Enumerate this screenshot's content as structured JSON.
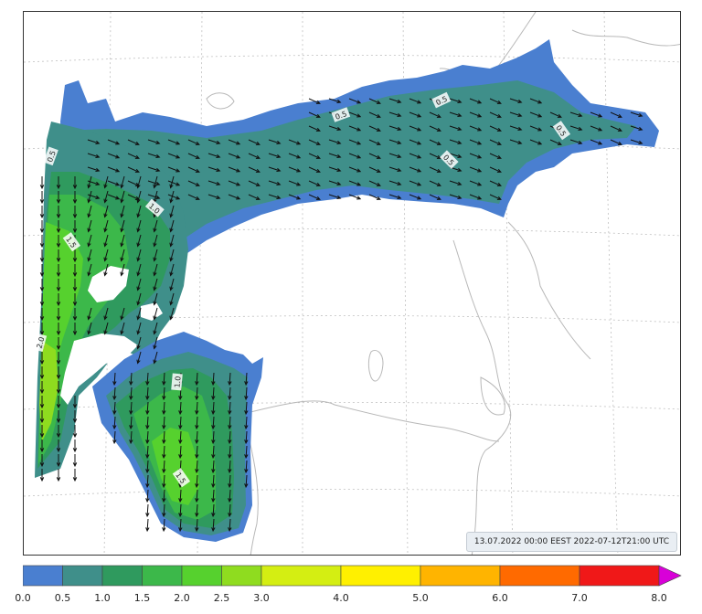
{
  "map": {
    "timestamp": "13.07.2022 00:00 EEST 2022-07-12T21:00 UTC",
    "contour_labels": [
      "0.5",
      "0.5",
      "0.5",
      "0.5",
      "0.5",
      "1.0",
      "1.5",
      "2.0",
      "1.0",
      "1.5"
    ],
    "colors": {
      "land_outline": "#b8b8b8",
      "grid": "#c0c0c0",
      "arrow": "#111111"
    }
  },
  "legend": {
    "tick_labels": [
      "0.0",
      "0.5",
      "1.0",
      "1.5",
      "2.0",
      "2.5",
      "3.0",
      "4.0",
      "5.0",
      "6.0",
      "7.0",
      "8.0"
    ],
    "bin_colors": [
      "#4a7fd0",
      "#3f8f8a",
      "#2f9a5e",
      "#3cb84a",
      "#56d12e",
      "#8fdc1f",
      "#d4ee12",
      "#fff000",
      "#ffb400",
      "#ff6a00",
      "#f01818",
      "#c8004a",
      "#a8007a"
    ],
    "extend_color": "#d800d8"
  }
}
